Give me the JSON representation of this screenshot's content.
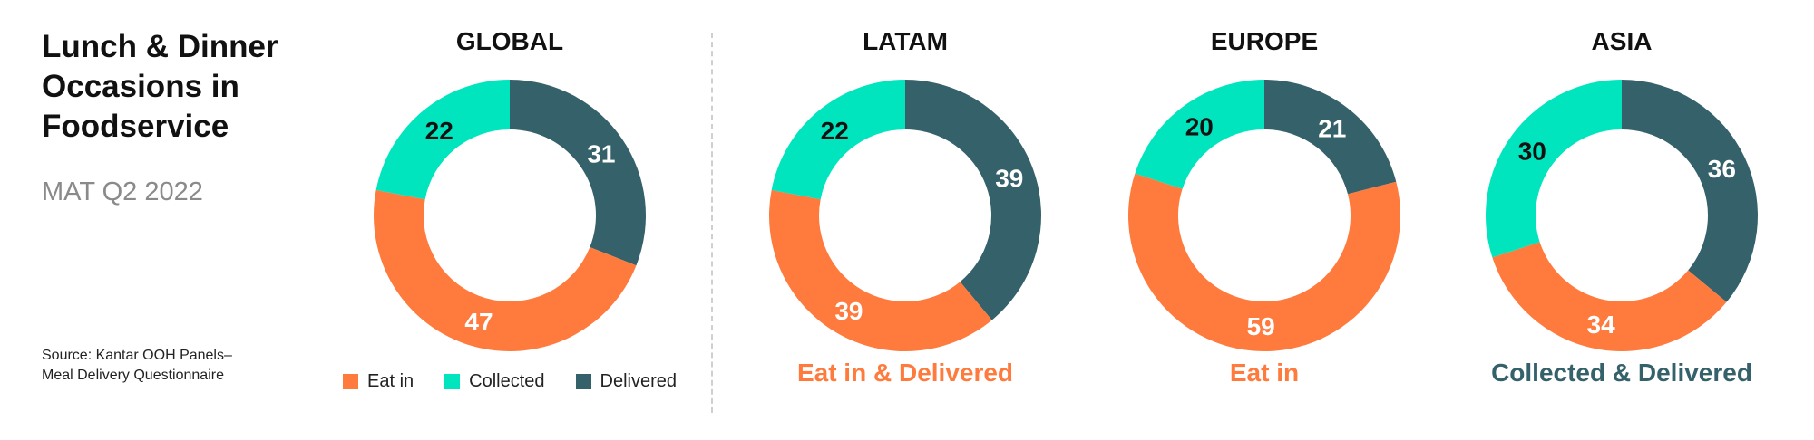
{
  "title": "Lunch & Dinner Occasions in Foodservice",
  "subtitle": "MAT Q2 2022",
  "source": "Source: Kantar OOH Panels–Meal Delivery Questionnaire",
  "colors": {
    "eat_in": "#FF7A3D",
    "collected": "#00E5BE",
    "delivered": "#35616A",
    "label_light": "#ffffff",
    "label_dark": "#111111"
  },
  "legend": [
    {
      "key": "eat_in",
      "label": "Eat in"
    },
    {
      "key": "collected",
      "label": "Collected"
    },
    {
      "key": "delivered",
      "label": "Delivered"
    }
  ],
  "chart_data": [
    {
      "type": "pie",
      "title": "GLOBAL",
      "series": [
        {
          "name": "Delivered",
          "value": 31
        },
        {
          "name": "Eat in",
          "value": 47
        },
        {
          "name": "Collected",
          "value": 22
        }
      ],
      "caption": ""
    },
    {
      "type": "pie",
      "title": "LATAM",
      "series": [
        {
          "name": "Delivered",
          "value": 39
        },
        {
          "name": "Eat in",
          "value": 39
        },
        {
          "name": "Collected",
          "value": 22
        }
      ],
      "caption": "Eat in & Delivered",
      "caption_color": "#FF7A3D"
    },
    {
      "type": "pie",
      "title": "EUROPE",
      "series": [
        {
          "name": "Delivered",
          "value": 21
        },
        {
          "name": "Eat in",
          "value": 59
        },
        {
          "name": "Collected",
          "value": 20
        }
      ],
      "caption": "Eat in",
      "caption_color": "#FF7A3D"
    },
    {
      "type": "pie",
      "title": "ASIA",
      "series": [
        {
          "name": "Delivered",
          "value": 36
        },
        {
          "name": "Eat in",
          "value": 34
        },
        {
          "name": "Collected",
          "value": 30
        }
      ],
      "caption": "Collected & Delivered",
      "caption_color": "#35616A"
    }
  ]
}
